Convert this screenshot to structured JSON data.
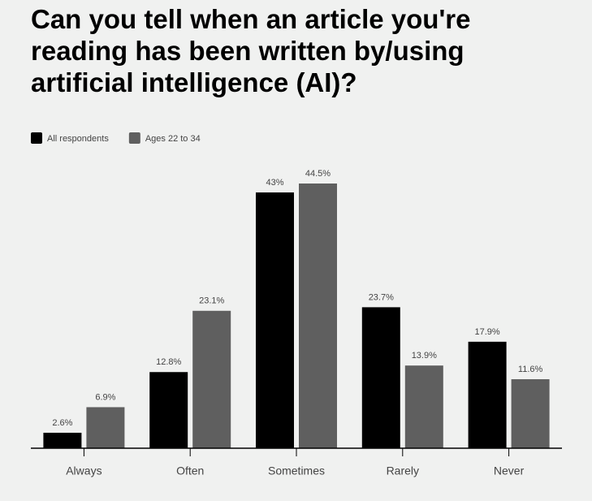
{
  "chart_data": {
    "type": "bar",
    "title": "Can you tell when an article you're reading has been written by/using artificial intelligence (AI)?",
    "categories": [
      "Always",
      "Often",
      "Sometimes",
      "Rarely",
      "Never"
    ],
    "series": [
      {
        "name": "All respondents",
        "color": "#000000",
        "values": [
          2.6,
          12.8,
          43,
          23.7,
          17.9
        ],
        "value_labels": [
          "2.6%",
          "12.8%",
          "43%",
          "23.7%",
          "17.9%"
        ]
      },
      {
        "name": "Ages 22 to 34",
        "color": "#5f5f5f",
        "values": [
          6.9,
          23.1,
          44.5,
          13.9,
          11.6
        ],
        "value_labels": [
          "6.9%",
          "23.1%",
          "44.5%",
          "13.9%",
          "11.6%"
        ]
      }
    ],
    "legend": "top-left"
  }
}
